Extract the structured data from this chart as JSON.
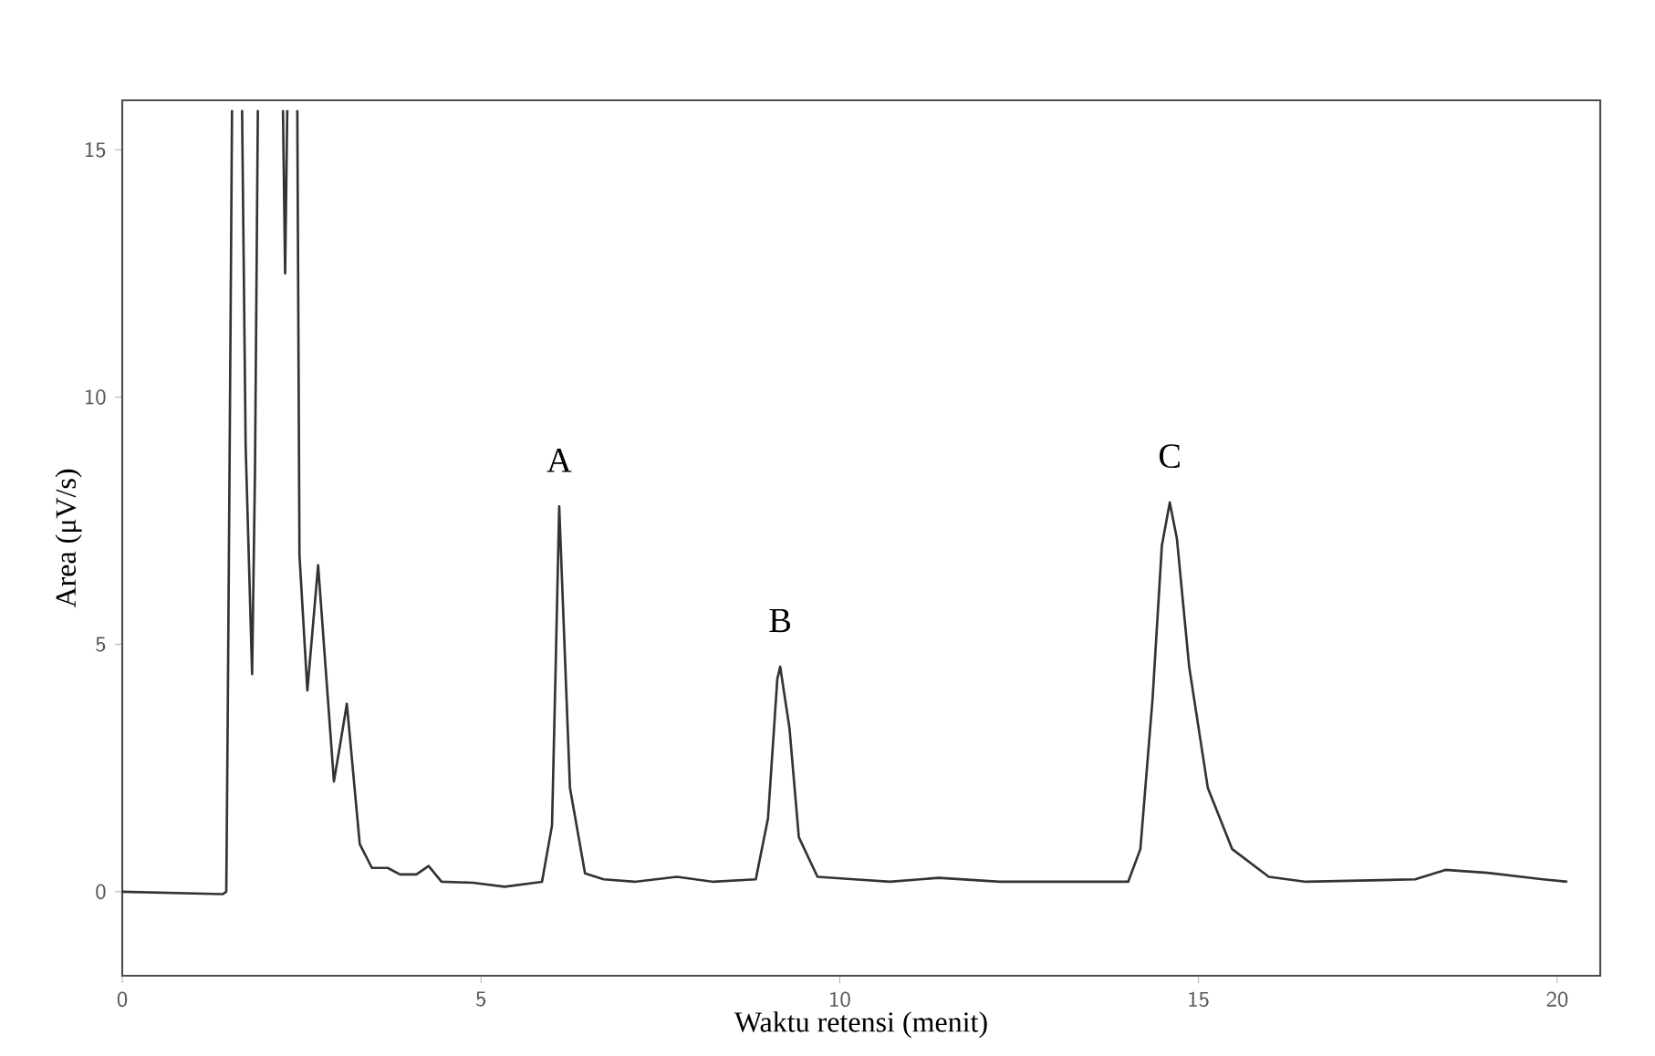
{
  "chart_data": {
    "type": "line",
    "xlabel": "Waktu retensi (menit)",
    "ylabel": "Area (μV/s)",
    "xlim": [
      0,
      20.6
    ],
    "ylim": [
      -1.7,
      16
    ],
    "xticks": [
      0,
      5,
      10,
      15,
      20
    ],
    "yticks": [
      0,
      5,
      10,
      15
    ],
    "grid": false,
    "marker": "none",
    "line_style": "solid",
    "annotations": [
      {
        "text": "A",
        "x": 6.09,
        "y": 7.79
      },
      {
        "text": "B",
        "x": 9.17,
        "y": 4.55
      },
      {
        "text": "C",
        "x": 14.6,
        "y": 7.87
      }
    ],
    "series": [
      {
        "color": "#333333",
        "x": [
          0,
          1.4,
          1.45,
          1.47,
          1.5,
          1.53,
          1.6,
          1.67,
          1.72,
          1.81,
          1.85,
          1.89,
          2.05,
          2.24,
          2.27,
          2.3,
          2.38,
          2.44,
          2.47,
          2.58,
          2.73,
          2.95,
          3.04,
          3.13,
          3.31,
          3.48,
          3.7,
          3.87,
          4.1,
          4.27,
          4.45,
          4.89,
          5.33,
          5.85,
          5.99,
          6.04,
          6.09,
          6.24,
          6.45,
          6.71,
          7.14,
          7.73,
          8.24,
          8.83,
          9.0,
          9.13,
          9.17,
          9.3,
          9.43,
          9.69,
          10.2,
          10.7,
          11.38,
          12.23,
          13.85,
          14.02,
          14.19,
          14.36,
          14.49,
          14.6,
          14.7,
          14.87,
          15.13,
          15.47,
          15.98,
          16.5,
          18.02,
          18.44,
          19.03,
          19.8,
          20.14
        ],
        "values": [
          0,
          -0.05,
          0,
          3.5,
          9.5,
          15.8,
          null,
          15.8,
          9,
          4.4,
          8.5,
          15.8,
          null,
          15.8,
          12.5,
          15.8,
          null,
          15.8,
          6.8,
          4.07,
          6.6,
          2.23,
          3.0,
          3.8,
          0.96,
          0.48,
          0.48,
          0.35,
          0.35,
          0.52,
          0.2,
          0.18,
          0.1,
          0.2,
          1.34,
          4.5,
          7.79,
          2.1,
          0.37,
          0.25,
          0.2,
          0.3,
          0.2,
          0.25,
          1.48,
          4.3,
          4.55,
          3.3,
          1.1,
          0.3,
          0.25,
          0.2,
          0.28,
          0.2,
          0.2,
          0.2,
          0.86,
          3.9,
          7.0,
          7.87,
          7.13,
          4.55,
          2.1,
          0.86,
          0.3,
          0.2,
          0.25,
          0.44,
          0.38,
          0.25,
          0.2
        ]
      }
    ]
  }
}
